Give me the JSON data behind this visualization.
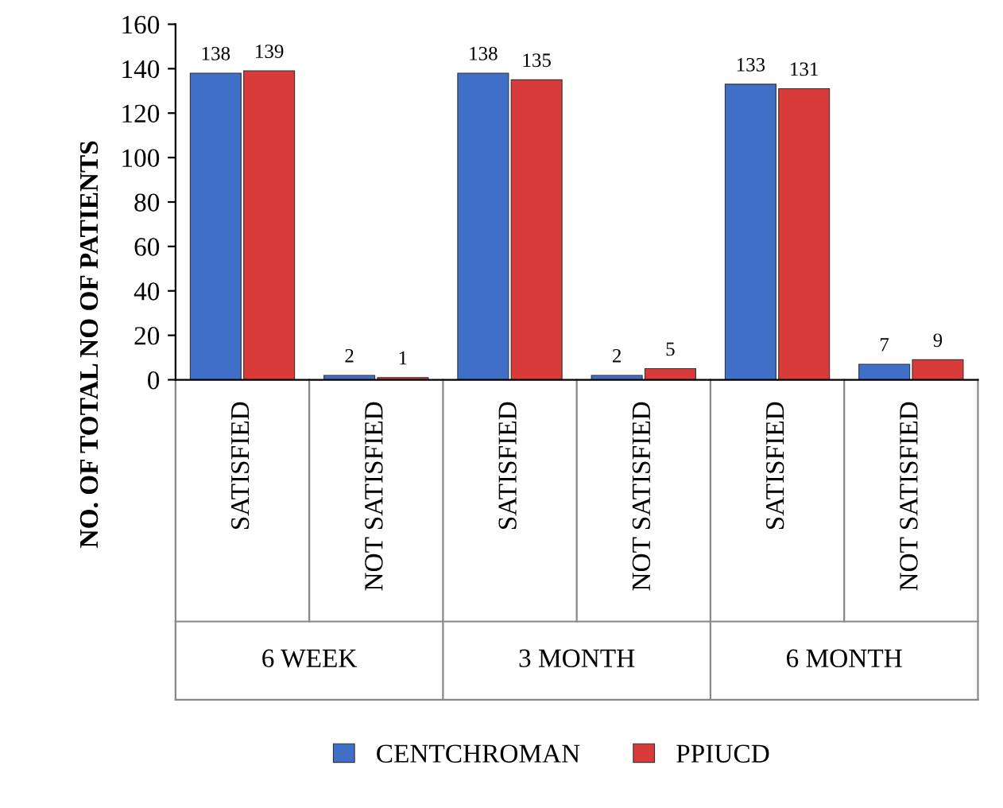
{
  "chart_data": {
    "type": "bar",
    "ylabel": "NO. OF TOTAL NO OF PATIENTS",
    "categories": [
      "SATISFIED",
      "NOT SATISFIED",
      "SATISFIED",
      "NOT SATISFIED",
      "SATISFIED",
      "NOT SATISFIED"
    ],
    "series": [
      {
        "name": "CENTCHROMAN",
        "color": "#3f6fc6",
        "values": [
          138,
          2,
          138,
          2,
          133,
          7
        ]
      },
      {
        "name": "PPIUCD",
        "color": "#d93a3a",
        "values": [
          139,
          1,
          135,
          5,
          131,
          9
        ]
      }
    ],
    "ylim": [
      0,
      160
    ],
    "yticks": [
      0,
      20,
      40,
      60,
      80,
      100,
      120,
      140,
      160
    ],
    "data_labels": true,
    "legend": "bottom",
    "grid": false,
    "annotations": [
      "6 WEEK",
      "3 MONTH",
      "6 MONTH"
    ]
  }
}
